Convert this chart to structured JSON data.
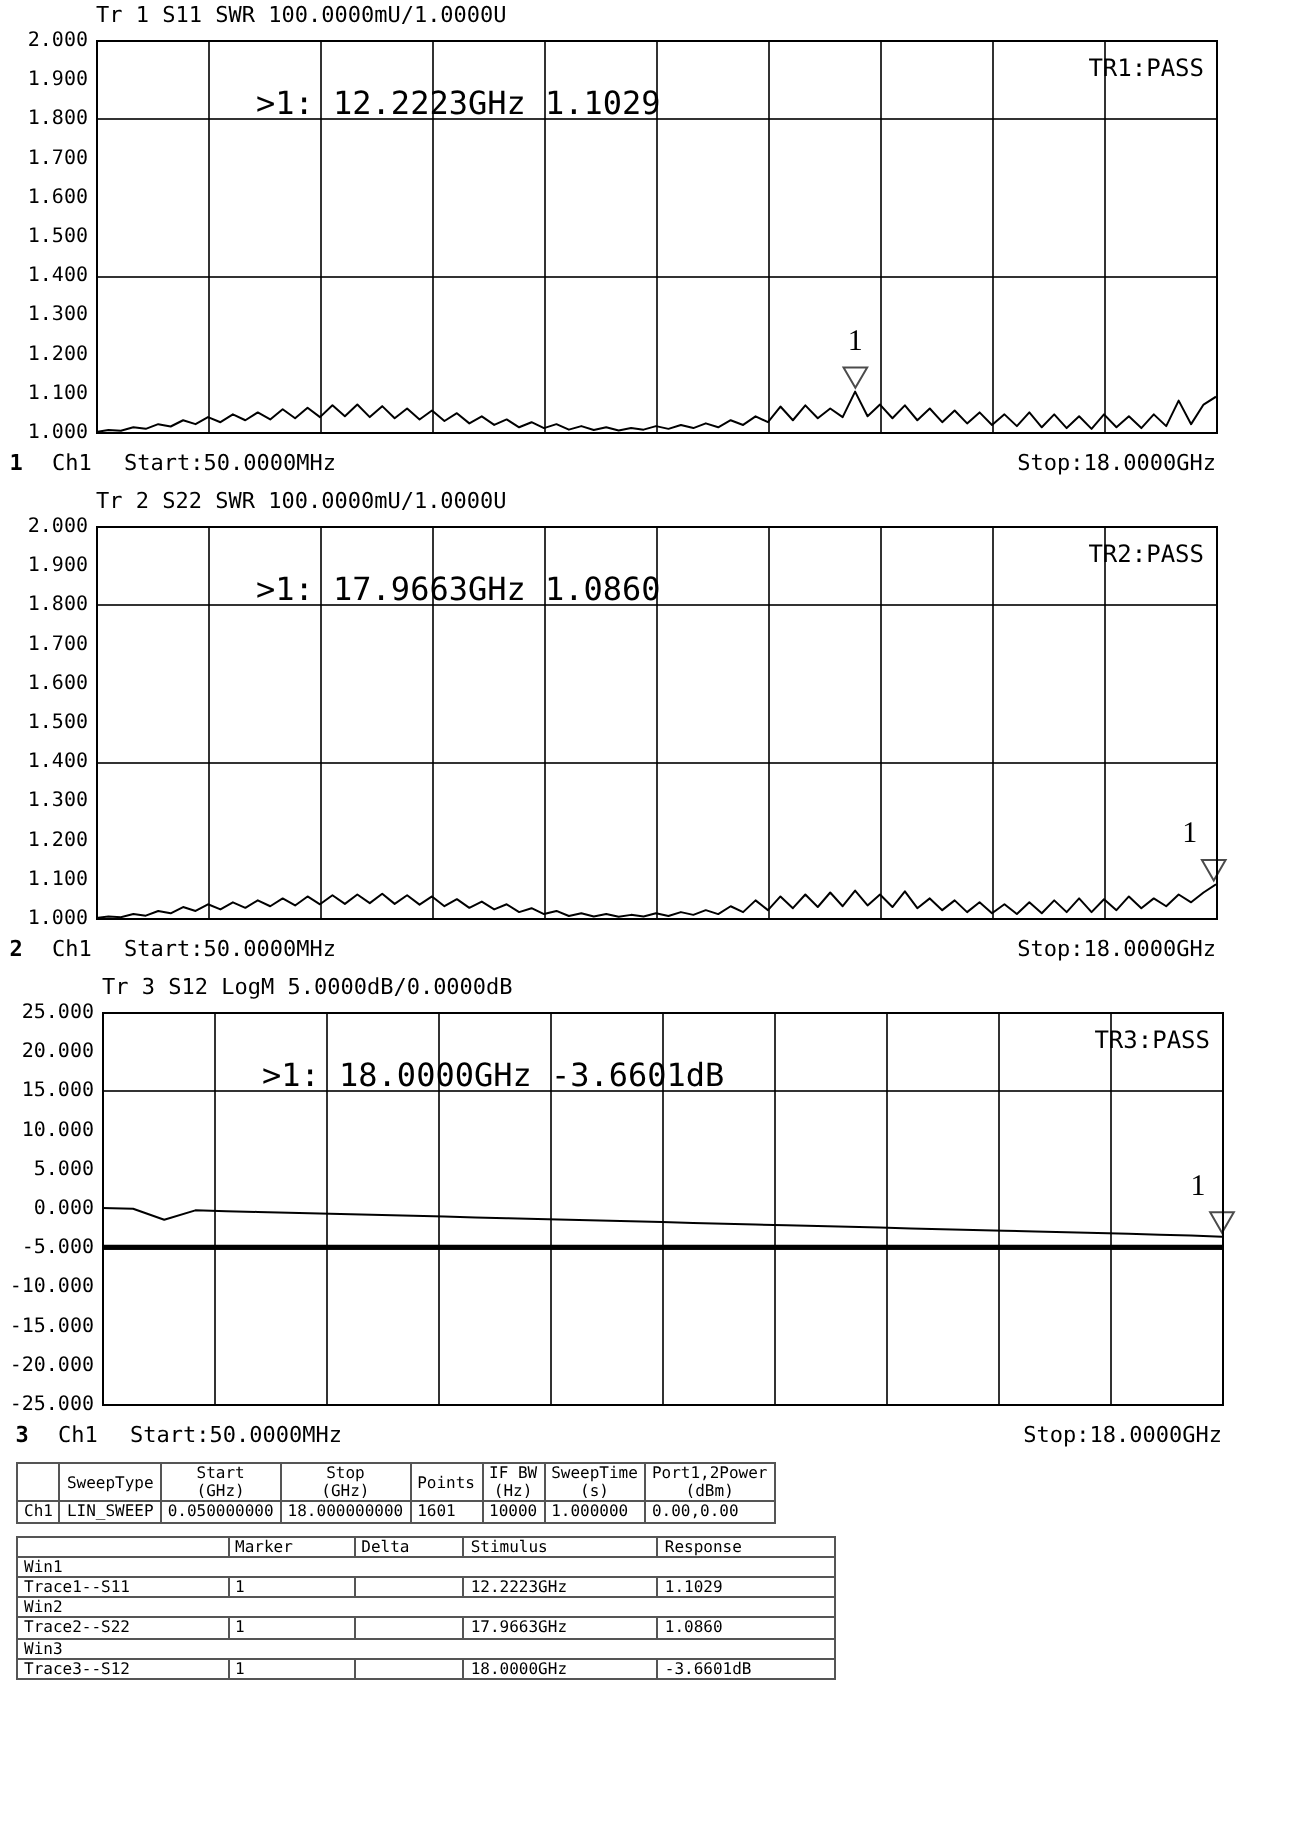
{
  "chart_data": [
    {
      "type": "line",
      "title": "Tr 1  S11 SWR 100.0000mU/1.0000U",
      "categories": [
        null,
        null,
        null,
        null,
        null,
        null,
        null,
        null,
        null,
        null,
        null,
        null,
        null,
        null,
        null,
        null,
        null,
        null,
        null,
        null,
        null,
        null,
        null,
        null,
        null,
        null,
        null,
        null,
        null,
        null,
        null,
        null,
        null,
        null,
        null,
        null,
        null,
        null,
        null,
        null,
        null,
        null,
        null,
        null,
        null,
        null,
        null,
        null,
        null,
        null,
        null,
        null,
        null,
        null,
        null,
        null,
        null,
        null,
        null,
        null,
        null,
        null,
        null,
        null,
        null,
        null,
        null,
        null,
        null,
        null,
        null,
        null,
        null,
        null,
        null,
        null,
        null,
        null,
        null,
        null,
        null,
        null,
        null,
        null,
        null,
        null,
        null,
        null,
        null,
        null,
        null
      ],
      "ylim": [
        1,
        2
      ],
      "yticks": [
        {
          "value": 1,
          "label": "1.000"
        },
        {
          "value": 1.1,
          "label": "1.100"
        },
        {
          "value": 1.2,
          "label": "1.200"
        },
        {
          "value": 1.3,
          "label": "1.300"
        },
        {
          "value": 1.4,
          "label": "1.400"
        },
        {
          "value": 1.5,
          "label": "1.500"
        },
        {
          "value": 1.6,
          "label": "1.600"
        },
        {
          "value": 1.7,
          "label": "1.700"
        },
        {
          "value": 1.8,
          "label": "1.800"
        },
        {
          "value": 1.9,
          "label": "1.900"
        },
        {
          "value": 2,
          "label": "2.000"
        }
      ],
      "grid": true,
      "tick_labels": "y",
      "annotations": [
        ">1:   12.2223GHz 1.1029",
        "TR1:PASS",
        "1",
        "Ch1",
        "Start:50.0000MHz",
        "Stop:18.0000GHz",
        "1"
      ],
      "series": [
        {
          "color": "#000000",
          "values": [
            1.0,
            1.005,
            1.003,
            1.012,
            1.008,
            1.02,
            1.014,
            1.03,
            1.02,
            1.038,
            1.025,
            1.045,
            1.03,
            1.05,
            1.032,
            1.058,
            1.035,
            1.062,
            1.038,
            1.068,
            1.04,
            1.07,
            1.038,
            1.066,
            1.035,
            1.06,
            1.032,
            1.055,
            1.028,
            1.048,
            1.022,
            1.04,
            1.018,
            1.032,
            1.012,
            1.025,
            1.01,
            1.02,
            1.006,
            1.015,
            1.005,
            1.012,
            1.004,
            1.01,
            1.006,
            1.015,
            1.008,
            1.018,
            1.01,
            1.022,
            1.012,
            1.03,
            1.018,
            1.04,
            1.025,
            1.065,
            1.03,
            1.068,
            1.035,
            1.06,
            1.038,
            1.1029,
            1.04,
            1.07,
            1.035,
            1.068,
            1.03,
            1.06,
            1.025,
            1.055,
            1.022,
            1.05,
            1.018,
            1.045,
            1.015,
            1.05,
            1.012,
            1.045,
            1.01,
            1.04,
            1.008,
            1.045,
            1.012,
            1.04,
            1.01,
            1.045,
            1.015,
            1.08,
            1.02,
            1.07,
            1.09
          ]
        }
      ]
    },
    {
      "type": "line",
      "title": "Tr 2  S22 SWR 100.0000mU/1.0000U",
      "categories": [
        null,
        null,
        null,
        null,
        null,
        null,
        null,
        null,
        null,
        null,
        null,
        null,
        null,
        null,
        null,
        null,
        null,
        null,
        null,
        null,
        null,
        null,
        null,
        null,
        null,
        null,
        null,
        null,
        null,
        null,
        null,
        null,
        null,
        null,
        null,
        null,
        null,
        null,
        null,
        null,
        null,
        null,
        null,
        null,
        null,
        null,
        null,
        null,
        null,
        null,
        null,
        null,
        null,
        null,
        null,
        null,
        null,
        null,
        null,
        null,
        null,
        null,
        null,
        null,
        null,
        null,
        null,
        null,
        null,
        null,
        null,
        null,
        null,
        null,
        null,
        null,
        null,
        null,
        null,
        null,
        null,
        null,
        null,
        null,
        null,
        null,
        null,
        null,
        null,
        null,
        null
      ],
      "ylim": [
        1,
        2
      ],
      "yticks": [
        {
          "value": 1,
          "label": "1.000"
        },
        {
          "value": 1.1,
          "label": "1.100"
        },
        {
          "value": 1.2,
          "label": "1.200"
        },
        {
          "value": 1.3,
          "label": "1.300"
        },
        {
          "value": 1.4,
          "label": "1.400"
        },
        {
          "value": 1.5,
          "label": "1.500"
        },
        {
          "value": 1.6,
          "label": "1.600"
        },
        {
          "value": 1.7,
          "label": "1.700"
        },
        {
          "value": 1.8,
          "label": "1.800"
        },
        {
          "value": 1.9,
          "label": "1.900"
        },
        {
          "value": 2,
          "label": "2.000"
        }
      ],
      "grid": true,
      "tick_labels": "y",
      "annotations": [
        ">1:   17.9663GHz 1.0860",
        "TR2:PASS",
        "2",
        "Ch1",
        "Start:50.0000MHz",
        "Stop:18.0000GHz",
        "1"
      ],
      "series": [
        {
          "color": "#000000",
          "values": [
            1.0,
            1.004,
            1.002,
            1.01,
            1.006,
            1.018,
            1.012,
            1.028,
            1.018,
            1.035,
            1.022,
            1.04,
            1.026,
            1.045,
            1.03,
            1.05,
            1.032,
            1.055,
            1.035,
            1.058,
            1.036,
            1.06,
            1.038,
            1.062,
            1.036,
            1.058,
            1.034,
            1.055,
            1.03,
            1.048,
            1.026,
            1.042,
            1.022,
            1.035,
            1.015,
            1.025,
            1.01,
            1.018,
            1.005,
            1.012,
            1.004,
            1.01,
            1.003,
            1.008,
            1.004,
            1.012,
            1.005,
            1.015,
            1.008,
            1.02,
            1.01,
            1.03,
            1.015,
            1.045,
            1.02,
            1.055,
            1.025,
            1.06,
            1.028,
            1.065,
            1.03,
            1.07,
            1.032,
            1.06,
            1.028,
            1.068,
            1.025,
            1.05,
            1.02,
            1.045,
            1.015,
            1.04,
            1.012,
            1.035,
            1.01,
            1.04,
            1.012,
            1.045,
            1.015,
            1.05,
            1.015,
            1.048,
            1.02,
            1.055,
            1.025,
            1.05,
            1.03,
            1.06,
            1.04,
            1.065,
            1.086
          ]
        }
      ]
    },
    {
      "type": "line",
      "title": "Tr 3  S12 LogM 5.0000dB/0.0000dB",
      "categories": [
        null,
        null,
        null,
        null,
        null,
        null,
        null,
        null,
        null,
        null,
        null,
        null,
        null,
        null,
        null,
        null,
        null,
        null,
        null,
        null,
        null,
        null,
        null,
        null,
        null,
        null,
        null,
        null,
        null,
        null,
        null,
        null,
        null,
        null,
        null,
        null,
        null
      ],
      "ylim": [
        -25,
        25
      ],
      "yticks": [
        {
          "value": -25,
          "label": "-25.000"
        },
        {
          "value": -20,
          "label": "-20.000"
        },
        {
          "value": -15,
          "label": "-15.000"
        },
        {
          "value": -10,
          "label": "-10.000"
        },
        {
          "value": -5,
          "label": "-5.000"
        },
        {
          "value": 0,
          "label": "0.000"
        },
        {
          "value": 5,
          "label": "5.000"
        },
        {
          "value": 10,
          "label": "10.000"
        },
        {
          "value": 15,
          "label": "15.000"
        },
        {
          "value": 20,
          "label": "20.000"
        },
        {
          "value": 25,
          "label": "25.000"
        }
      ],
      "grid": true,
      "tick_labels": "y",
      "ref_lines": [
        {
          "axis": "y",
          "value": -5,
          "color": "#000000"
        }
      ],
      "annotations": [
        ">1:   18.0000GHz -3.6601dB",
        "TR3:PASS",
        "3",
        "Ch1",
        "Start:50.0000MHz",
        "Stop:18.0000GHz",
        "1"
      ],
      "series": [
        {
          "color": "#000000",
          "values": [
            0.0,
            -0.1,
            -1.5,
            -0.3,
            -0.4,
            -0.5,
            -0.6,
            -0.7,
            -0.8,
            -0.9,
            -1.0,
            -1.1,
            -1.2,
            -1.3,
            -1.4,
            -1.5,
            -1.6,
            -1.7,
            -1.8,
            -1.9,
            -2.0,
            -2.1,
            -2.2,
            -2.3,
            -2.4,
            -2.5,
            -2.6,
            -2.7,
            -2.8,
            -2.9,
            -3.0,
            -3.1,
            -3.2,
            -3.3,
            -3.4,
            -3.5,
            -3.6601
          ]
        }
      ]
    },
    {
      "type": "other",
      "annotations": [
        "SweepType",
        "Start\n(GHz)",
        "Stop\n(GHz)",
        "Points",
        "IF BW\n(Hz)",
        "SweepTime\n(s)",
        "Port1,2Power\n(dBm)",
        "Ch1",
        "LIN_SWEEP",
        "0.050000000",
        "18.000000000",
        "1601",
        "10000",
        "1.000000",
        "0.00,0.00",
        "Marker",
        "Delta",
        "Stimulus",
        "Response",
        "Win1",
        "Trace1--S11",
        "1",
        "12.2223GHz",
        "1.1029",
        "Win2",
        "Trace2--S22",
        "1",
        "17.9663GHz",
        "1.0860",
        "Win3",
        "Trace3--S12",
        "1",
        "18.0000GHz",
        "-3.6601dB"
      ]
    }
  ]
}
